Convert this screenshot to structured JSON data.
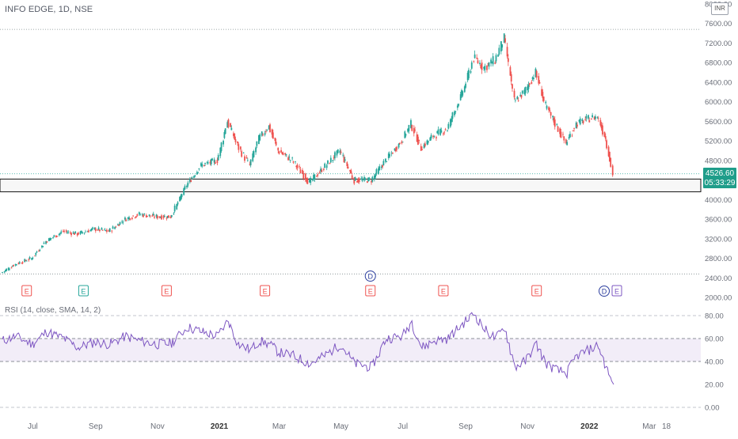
{
  "header": {
    "symbol_title": "INFO EDGE, 1D, NSE",
    "currency": "INR"
  },
  "price_badge": {
    "last_price": "4526.60",
    "countdown": "05:33:29"
  },
  "rsi": {
    "title": "RSI (14, close, SMA, 14, 2)"
  },
  "colors": {
    "up": "#26a69a",
    "down": "#ef5350",
    "rsi_line": "#7e57c2",
    "rsi_band": "#ede7f6",
    "price_badge": "#1f9d8a",
    "zone_fill": "#e9e9e9"
  },
  "chart_data": [
    {
      "type": "candlestick",
      "title": "INFO EDGE, 1D, NSE",
      "y_scale": "linear",
      "ylim": [
        2000,
        8000
      ],
      "y_ticks": [
        "8000.00",
        "7600.00",
        "7200.00",
        "6800.00",
        "6400.00",
        "6000.00",
        "5600.00",
        "5200.00",
        "4800.00",
        "4400.00",
        "4000.00",
        "3600.00",
        "3200.00",
        "2800.00",
        "2400.00",
        "2000.00"
      ],
      "x_ticks": [
        "Jul",
        "Sep",
        "Nov",
        "2021",
        "Mar",
        "May",
        "Jul",
        "Sep",
        "Nov",
        "2022",
        "Mar",
        "18"
      ],
      "key_levels": [
        7480,
        4526.6,
        2480
      ],
      "support_zone": [
        4160,
        4420
      ],
      "last_price": 4526.6,
      "close_series": [
        {
          "x": "2020-06-01",
          "y": 2500
        },
        {
          "x": "2020-06-15",
          "y": 2680
        },
        {
          "x": "2020-07-01",
          "y": 2800
        },
        {
          "x": "2020-07-15",
          "y": 3150
        },
        {
          "x": "2020-08-01",
          "y": 3350
        },
        {
          "x": "2020-08-15",
          "y": 3300
        },
        {
          "x": "2020-09-01",
          "y": 3400
        },
        {
          "x": "2020-09-15",
          "y": 3350
        },
        {
          "x": "2020-10-01",
          "y": 3600
        },
        {
          "x": "2020-10-15",
          "y": 3700
        },
        {
          "x": "2020-11-01",
          "y": 3650
        },
        {
          "x": "2020-11-15",
          "y": 3650
        },
        {
          "x": "2020-12-01",
          "y": 4300
        },
        {
          "x": "2020-12-15",
          "y": 4700
        },
        {
          "x": "2020-12-31",
          "y": 4800
        },
        {
          "x": "2021-01-10",
          "y": 5600
        },
        {
          "x": "2021-01-20",
          "y": 5100
        },
        {
          "x": "2021-02-01",
          "y": 4700
        },
        {
          "x": "2021-02-10",
          "y": 5250
        },
        {
          "x": "2021-02-20",
          "y": 5500
        },
        {
          "x": "2021-03-01",
          "y": 5000
        },
        {
          "x": "2021-03-15",
          "y": 4800
        },
        {
          "x": "2021-04-01",
          "y": 4350
        },
        {
          "x": "2021-04-15",
          "y": 4650
        },
        {
          "x": "2021-05-01",
          "y": 5000
        },
        {
          "x": "2021-05-15",
          "y": 4400
        },
        {
          "x": "2021-06-01",
          "y": 4400
        },
        {
          "x": "2021-06-15",
          "y": 4800
        },
        {
          "x": "2021-07-01",
          "y": 5200
        },
        {
          "x": "2021-07-10",
          "y": 5550
        },
        {
          "x": "2021-07-20",
          "y": 5050
        },
        {
          "x": "2021-08-01",
          "y": 5300
        },
        {
          "x": "2021-08-15",
          "y": 5450
        },
        {
          "x": "2021-09-01",
          "y": 6300
        },
        {
          "x": "2021-09-10",
          "y": 6900
        },
        {
          "x": "2021-09-20",
          "y": 6700
        },
        {
          "x": "2021-10-01",
          "y": 6850
        },
        {
          "x": "2021-10-10",
          "y": 7300
        },
        {
          "x": "2021-10-20",
          "y": 6000
        },
        {
          "x": "2021-10-30",
          "y": 6200
        },
        {
          "x": "2021-11-10",
          "y": 6600
        },
        {
          "x": "2021-11-20",
          "y": 5900
        },
        {
          "x": "2021-12-01",
          "y": 5500
        },
        {
          "x": "2021-12-10",
          "y": 5150
        },
        {
          "x": "2021-12-20",
          "y": 5550
        },
        {
          "x": "2022-01-01",
          "y": 5650
        },
        {
          "x": "2022-01-10",
          "y": 5700
        },
        {
          "x": "2022-01-18",
          "y": 5250
        },
        {
          "x": "2022-01-25",
          "y": 4526.6
        }
      ],
      "events": [
        {
          "label": "E",
          "x": "2020-06-25",
          "kind": "red"
        },
        {
          "label": "E",
          "x": "2020-08-20",
          "kind": "green"
        },
        {
          "label": "E",
          "x": "2020-11-10",
          "kind": "red"
        },
        {
          "label": "E",
          "x": "2021-02-15",
          "kind": "red"
        },
        {
          "label": "D",
          "x": "2021-05-30",
          "kind": "dividend"
        },
        {
          "label": "E",
          "x": "2021-05-30",
          "kind": "red"
        },
        {
          "label": "E",
          "x": "2021-08-10",
          "kind": "red"
        },
        {
          "label": "E",
          "x": "2021-11-10",
          "kind": "red"
        },
        {
          "label": "D",
          "x": "2022-01-20",
          "kind": "dividend"
        },
        {
          "label": "E",
          "x": "2022-01-25",
          "kind": "pending"
        }
      ]
    },
    {
      "type": "line",
      "title": "RSI (14, close, SMA, 14, 2)",
      "ylim": [
        0,
        80
      ],
      "y_ticks": [
        "80.00",
        "60.00",
        "40.00",
        "20.00",
        "0.00"
      ],
      "band": [
        40,
        60
      ],
      "reference_lines": [
        80,
        60,
        40,
        0
      ],
      "series": [
        {
          "values": [
            {
              "x": "2020-06-01",
              "y": 58
            },
            {
              "x": "2020-06-15",
              "y": 62
            },
            {
              "x": "2020-07-01",
              "y": 55
            },
            {
              "x": "2020-07-15",
              "y": 66
            },
            {
              "x": "2020-08-01",
              "y": 60
            },
            {
              "x": "2020-08-15",
              "y": 52
            },
            {
              "x": "2020-09-01",
              "y": 57
            },
            {
              "x": "2020-09-15",
              "y": 55
            },
            {
              "x": "2020-10-01",
              "y": 62
            },
            {
              "x": "2020-10-15",
              "y": 58
            },
            {
              "x": "2020-11-01",
              "y": 55
            },
            {
              "x": "2020-11-15",
              "y": 56
            },
            {
              "x": "2020-12-01",
              "y": 70
            },
            {
              "x": "2020-12-15",
              "y": 66
            },
            {
              "x": "2020-12-31",
              "y": 62
            },
            {
              "x": "2021-01-10",
              "y": 76
            },
            {
              "x": "2021-01-20",
              "y": 55
            },
            {
              "x": "2021-02-01",
              "y": 50
            },
            {
              "x": "2021-02-10",
              "y": 58
            },
            {
              "x": "2021-02-20",
              "y": 55
            },
            {
              "x": "2021-03-01",
              "y": 48
            },
            {
              "x": "2021-03-15",
              "y": 45
            },
            {
              "x": "2021-04-01",
              "y": 38
            },
            {
              "x": "2021-04-15",
              "y": 45
            },
            {
              "x": "2021-05-01",
              "y": 55
            },
            {
              "x": "2021-05-15",
              "y": 38
            },
            {
              "x": "2021-06-01",
              "y": 35
            },
            {
              "x": "2021-06-15",
              "y": 60
            },
            {
              "x": "2021-07-01",
              "y": 62
            },
            {
              "x": "2021-07-10",
              "y": 75
            },
            {
              "x": "2021-07-20",
              "y": 52
            },
            {
              "x": "2021-08-01",
              "y": 58
            },
            {
              "x": "2021-08-15",
              "y": 60
            },
            {
              "x": "2021-09-01",
              "y": 75
            },
            {
              "x": "2021-09-10",
              "y": 82
            },
            {
              "x": "2021-09-20",
              "y": 68
            },
            {
              "x": "2021-10-01",
              "y": 60
            },
            {
              "x": "2021-10-10",
              "y": 70
            },
            {
              "x": "2021-10-20",
              "y": 35
            },
            {
              "x": "2021-10-30",
              "y": 40
            },
            {
              "x": "2021-11-10",
              "y": 55
            },
            {
              "x": "2021-11-20",
              "y": 38
            },
            {
              "x": "2021-12-01",
              "y": 32
            },
            {
              "x": "2021-12-10",
              "y": 30
            },
            {
              "x": "2021-12-20",
              "y": 45
            },
            {
              "x": "2022-01-01",
              "y": 50
            },
            {
              "x": "2022-01-10",
              "y": 54
            },
            {
              "x": "2022-01-18",
              "y": 35
            },
            {
              "x": "2022-01-25",
              "y": 20
            }
          ]
        }
      ]
    }
  ]
}
